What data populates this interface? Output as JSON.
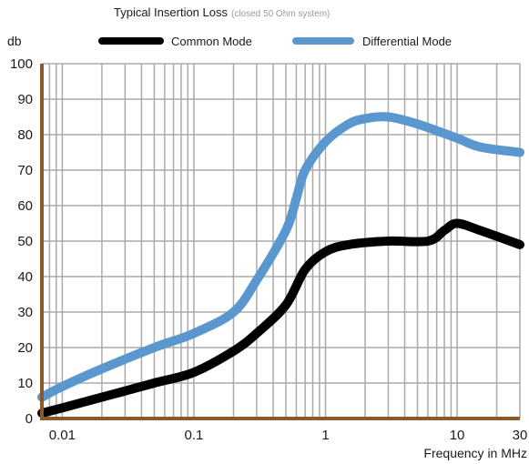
{
  "chart_data": {
    "type": "line",
    "title": "Typical Insertion Loss",
    "subtitle": "(closed 50 Ohm system)",
    "ylabel": "db",
    "xlabel": "Frequency in MHz",
    "x_scale": "log",
    "xlim": [
      0.007,
      30
    ],
    "ylim": [
      0,
      100
    ],
    "x_ticks": [
      0.01,
      0.1,
      1,
      10,
      30
    ],
    "x_tick_labels": [
      "0.01",
      "0.1",
      "1",
      "10",
      "30"
    ],
    "y_ticks": [
      0,
      10,
      20,
      30,
      40,
      50,
      60,
      70,
      80,
      90,
      100
    ],
    "y_tick_labels": [
      "0",
      "10",
      "20",
      "30",
      "40",
      "50",
      "60",
      "70",
      "80",
      "90",
      "100"
    ],
    "grid": true,
    "legend_position": "top",
    "series": [
      {
        "name": "Common Mode",
        "color": "#000000",
        "x": [
          0.007,
          0.01,
          0.02,
          0.05,
          0.1,
          0.2,
          0.3,
          0.5,
          0.7,
          1,
          1.5,
          3,
          6,
          8,
          10,
          15,
          30
        ],
        "y": [
          1.5,
          3,
          6,
          10,
          13,
          19,
          24,
          32,
          42,
          47,
          49,
          50,
          50,
          53,
          55,
          53,
          49
        ]
      },
      {
        "name": "Differential Mode",
        "color": "#5b97cf",
        "x": [
          0.007,
          0.01,
          0.02,
          0.05,
          0.1,
          0.2,
          0.3,
          0.5,
          0.6,
          0.7,
          1,
          1.5,
          2,
          3,
          5,
          10,
          15,
          30
        ],
        "y": [
          6,
          9,
          14,
          20,
          24,
          30,
          39,
          53,
          62,
          70,
          78,
          83,
          84.5,
          85,
          83,
          79,
          76.5,
          75
        ]
      }
    ]
  },
  "colors": {
    "axis": "#8b5a2b",
    "grid": "#aaaaaa",
    "background": "#ffffff"
  }
}
